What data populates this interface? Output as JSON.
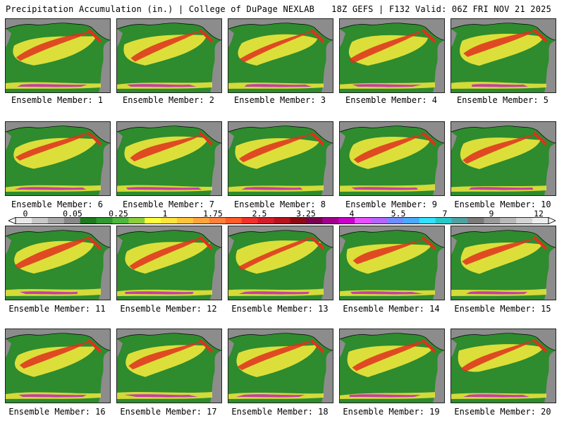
{
  "header": {
    "title": "Precipitation Accumulation (in.) | College of DuPage NEXLAB",
    "run_info": "18Z GEFS | F132 Valid: 06Z FRI NOV 21 2025"
  },
  "members": [
    "Ensemble Member: 1",
    "Ensemble Member: 2",
    "Ensemble Member: 3",
    "Ensemble Member: 4",
    "Ensemble Member: 5",
    "Ensemble Member: 6",
    "Ensemble Member: 7",
    "Ensemble Member: 8",
    "Ensemble Member: 9",
    "Ensemble Member: 10",
    "Ensemble Member: 11",
    "Ensemble Member: 12",
    "Ensemble Member: 13",
    "Ensemble Member: 14",
    "Ensemble Member: 15",
    "Ensemble Member: 16",
    "Ensemble Member: 17",
    "Ensemble Member: 18",
    "Ensemble Member: 19",
    "Ensemble Member: 20"
  ],
  "colorbar": {
    "tick_labels": [
      "0",
      "0.05",
      "0.25",
      "1",
      "1.75",
      "2.5",
      "3.25",
      "4",
      "5.5",
      "7",
      "9",
      "12"
    ],
    "colors": [
      "#e8e8e8",
      "#c8c8c8",
      "#a8a8a8",
      "#888888",
      "#1e7a1e",
      "#2f9a2f",
      "#4cb83c",
      "#8ccd3c",
      "#ffff3c",
      "#ffe43c",
      "#ffc43c",
      "#ffa43c",
      "#ff803c",
      "#ff5a28",
      "#f03228",
      "#d21e28",
      "#b4141e",
      "#8c0a14",
      "#780050",
      "#a0008c",
      "#c800c8",
      "#e650ff",
      "#b464ff",
      "#6e8cff",
      "#4ba8ff",
      "#32e0ff",
      "#28c8c8",
      "#50a0a0",
      "#7a7a7a",
      "#9a9a9a",
      "#b8b8b8",
      "#d4d4d4",
      "#eeeeee"
    ]
  },
  "colors": {
    "land_gray": "#8c8c8c",
    "ocean_green": "#2e8b2e",
    "heavy_red": "#e0301e",
    "moderate_yellow": "#f0e83c",
    "extreme_magenta": "#c018c0"
  }
}
